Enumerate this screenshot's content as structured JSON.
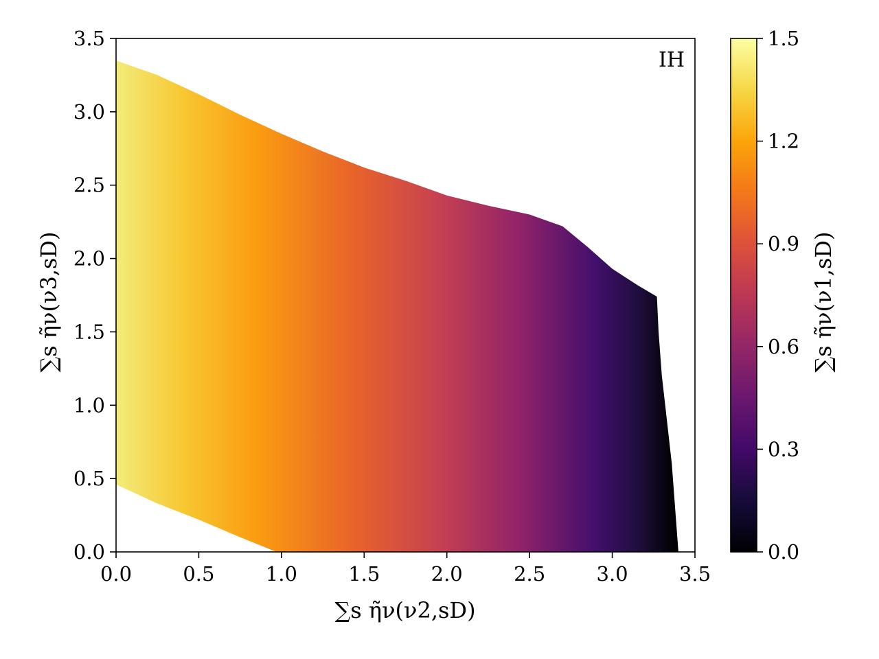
{
  "chart_data": {
    "type": "heatmap",
    "annotation": "IH",
    "xlabel": "∑s η̃ν(ν2,sD)",
    "ylabel": "∑s η̃ν(ν3,sD)",
    "colorbar_label": "∑s η̃ν(ν1,sD)",
    "xlim": [
      0.0,
      3.5
    ],
    "ylim": [
      0.0,
      3.5
    ],
    "xticks": [
      "0.0",
      "0.5",
      "1.0",
      "1.5",
      "2.0",
      "2.5",
      "3.0",
      "3.5"
    ],
    "yticks": [
      "0.0",
      "0.5",
      "1.0",
      "1.5",
      "2.0",
      "2.5",
      "3.0",
      "3.5"
    ],
    "colorbar": {
      "range": [
        0.0,
        1.5
      ],
      "ticks": [
        "0.0",
        "0.3",
        "0.6",
        "0.9",
        "1.2",
        "1.5"
      ],
      "colormap": "inferno"
    },
    "region": {
      "upper_boundary": [
        [
          0.0,
          3.35
        ],
        [
          0.25,
          3.25
        ],
        [
          0.5,
          3.12
        ],
        [
          0.75,
          2.98
        ],
        [
          1.0,
          2.85
        ],
        [
          1.25,
          2.73
        ],
        [
          1.5,
          2.62
        ],
        [
          1.75,
          2.53
        ],
        [
          2.0,
          2.43
        ],
        [
          2.25,
          2.36
        ],
        [
          2.5,
          2.3
        ],
        [
          2.7,
          2.22
        ],
        [
          2.85,
          2.08
        ],
        [
          3.0,
          1.93
        ],
        [
          3.15,
          1.82
        ],
        [
          3.27,
          1.74
        ]
      ],
      "right_boundary": [
        [
          3.27,
          1.74
        ],
        [
          3.28,
          1.5
        ],
        [
          3.3,
          1.2
        ],
        [
          3.33,
          0.9
        ],
        [
          3.36,
          0.6
        ],
        [
          3.38,
          0.3
        ],
        [
          3.4,
          0.0
        ]
      ],
      "lower_boundary": [
        [
          0.0,
          0.46
        ],
        [
          0.25,
          0.33
        ],
        [
          0.5,
          0.22
        ],
        [
          0.75,
          0.1
        ],
        [
          0.97,
          0.0
        ]
      ],
      "value_model": "color depends on x: value = max(0, 1.5 - x*0.46) approx; sum of three ≈ 3.4 - y contribution"
    }
  }
}
